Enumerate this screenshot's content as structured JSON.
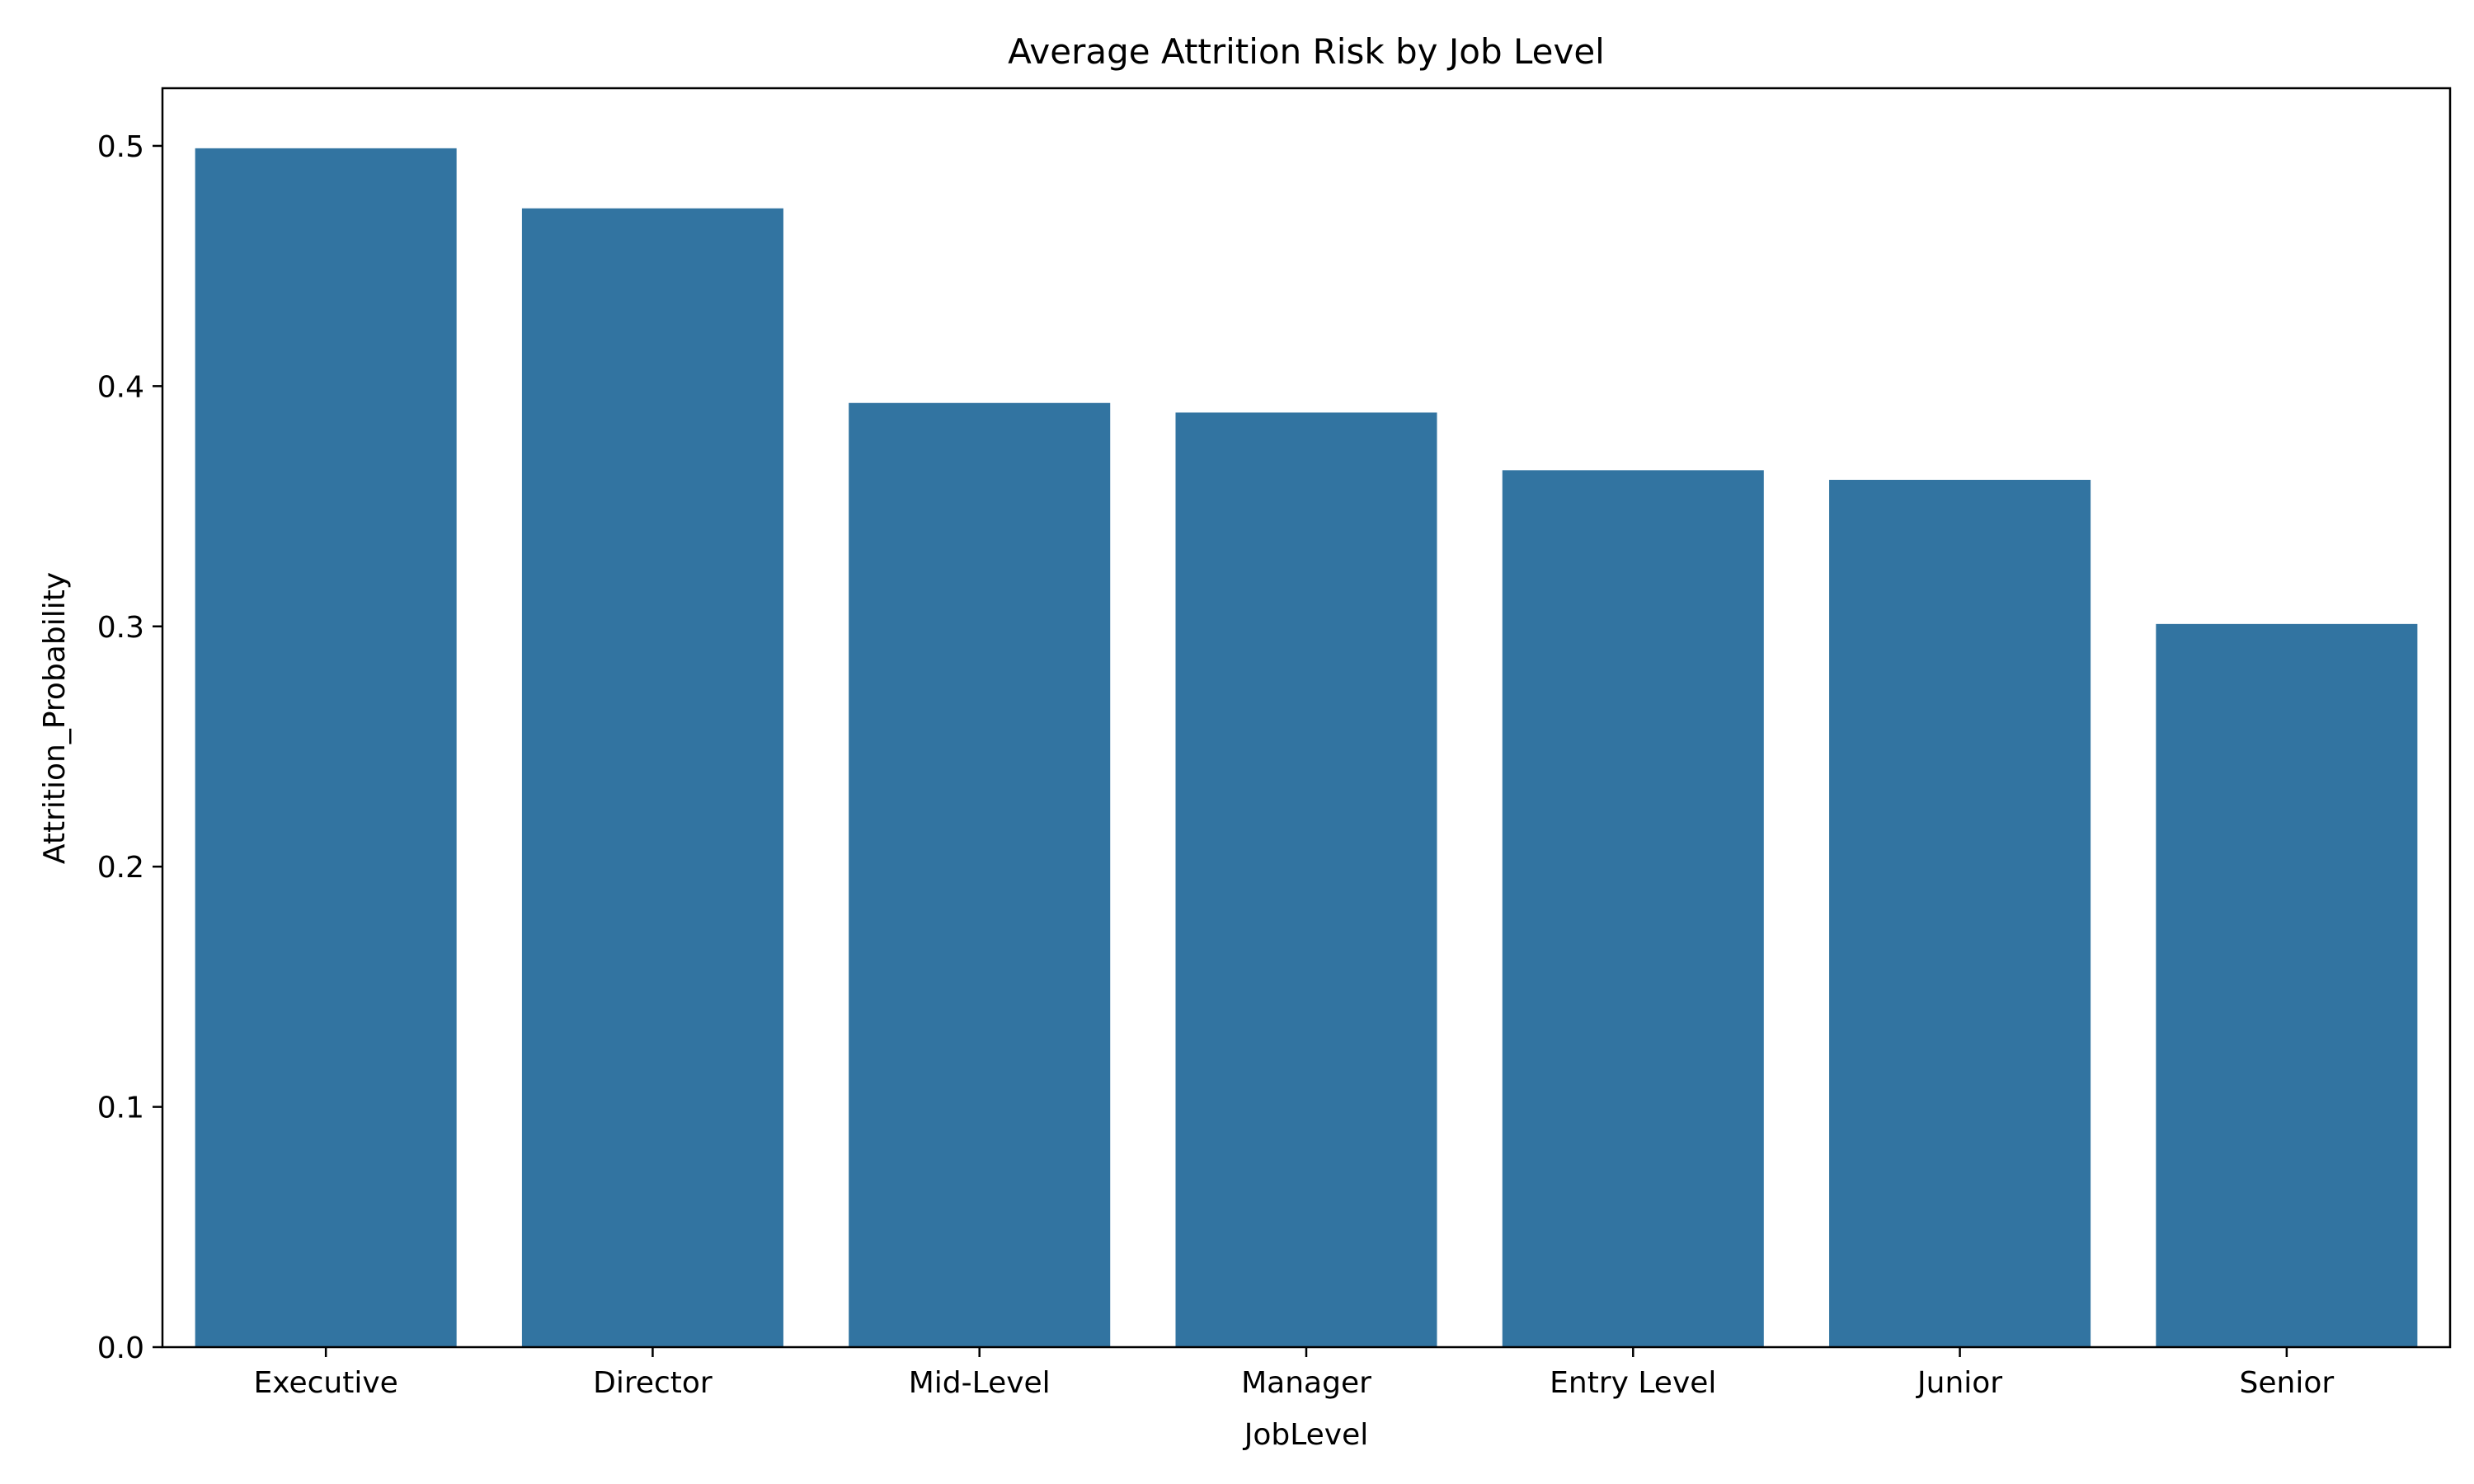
{
  "chart_data": {
    "type": "bar",
    "title": "Average Attrition Risk by Job Level",
    "xlabel": "JobLevel",
    "ylabel": "Attrition_Probability",
    "categories": [
      "Executive",
      "Director",
      "Mid-Level",
      "Manager",
      "Entry Level",
      "Junior",
      "Senior"
    ],
    "values": [
      0.499,
      0.474,
      0.393,
      0.389,
      0.365,
      0.361,
      0.301
    ],
    "ylim": [
      0,
      0.524
    ],
    "yticks": [
      "0.0",
      "0.1",
      "0.2",
      "0.3",
      "0.4",
      "0.5"
    ],
    "grid": false,
    "legend": "none",
    "colors": {
      "bar": "#3274a1",
      "axis": "#000000",
      "background": "#ffffff"
    }
  }
}
